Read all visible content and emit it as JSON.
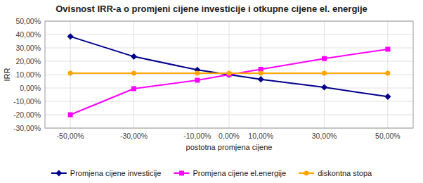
{
  "chart_data": {
    "type": "line",
    "title": "Ovisnost IRR-a o promjeni cijene investicije i otkupne cijene el. energije",
    "x_label": "postotna promjena  cijene",
    "y_label": "IRR",
    "x": [
      -0.5,
      -0.3,
      -0.1,
      0.0,
      0.1,
      0.3,
      0.5
    ],
    "xlim": [
      -0.58,
      0.58
    ],
    "xticks": [
      {
        "value": -0.5,
        "label": "-50,00%"
      },
      {
        "value": -0.3,
        "label": "-30,00%"
      },
      {
        "value": -0.1,
        "label": "-10,00%"
      },
      {
        "value": 0.0,
        "label": "0,00%"
      },
      {
        "value": 0.1,
        "label": "10,00%"
      },
      {
        "value": 0.3,
        "label": "30,00%"
      },
      {
        "value": 0.5,
        "label": "50,00%"
      }
    ],
    "ylim": [
      -0.3,
      0.5
    ],
    "yticks": [
      {
        "value": -0.3,
        "label": "-30,00%"
      },
      {
        "value": -0.2,
        "label": "-20,00%"
      },
      {
        "value": -0.1,
        "label": "-10,00%"
      },
      {
        "value": 0.0,
        "label": "0,00%"
      },
      {
        "value": 0.1,
        "label": "10,00%"
      },
      {
        "value": 0.2,
        "label": "20,00%"
      },
      {
        "value": 0.3,
        "label": "30,00%"
      },
      {
        "value": 0.4,
        "label": "40,00%"
      },
      {
        "value": 0.5,
        "label": "50,00%"
      }
    ],
    "grid": true,
    "legend": "bottom",
    "series": [
      {
        "name": "Promjena cijene investicije",
        "color": "#00008B",
        "marker": "diamond",
        "values": [
          0.385,
          0.235,
          0.135,
          0.1,
          0.065,
          0.005,
          -0.065
        ]
      },
      {
        "name": "Promjena cijene el.energije",
        "color": "#FF00FF",
        "marker": "square",
        "values": [
          -0.2,
          -0.005,
          0.058,
          0.1,
          0.14,
          0.22,
          0.29
        ]
      },
      {
        "name": "diskontna stopa",
        "color": "#FFA500",
        "marker": "circle",
        "values": [
          0.11,
          0.11,
          0.11,
          0.11,
          0.11,
          0.11,
          0.11
        ]
      }
    ]
  }
}
